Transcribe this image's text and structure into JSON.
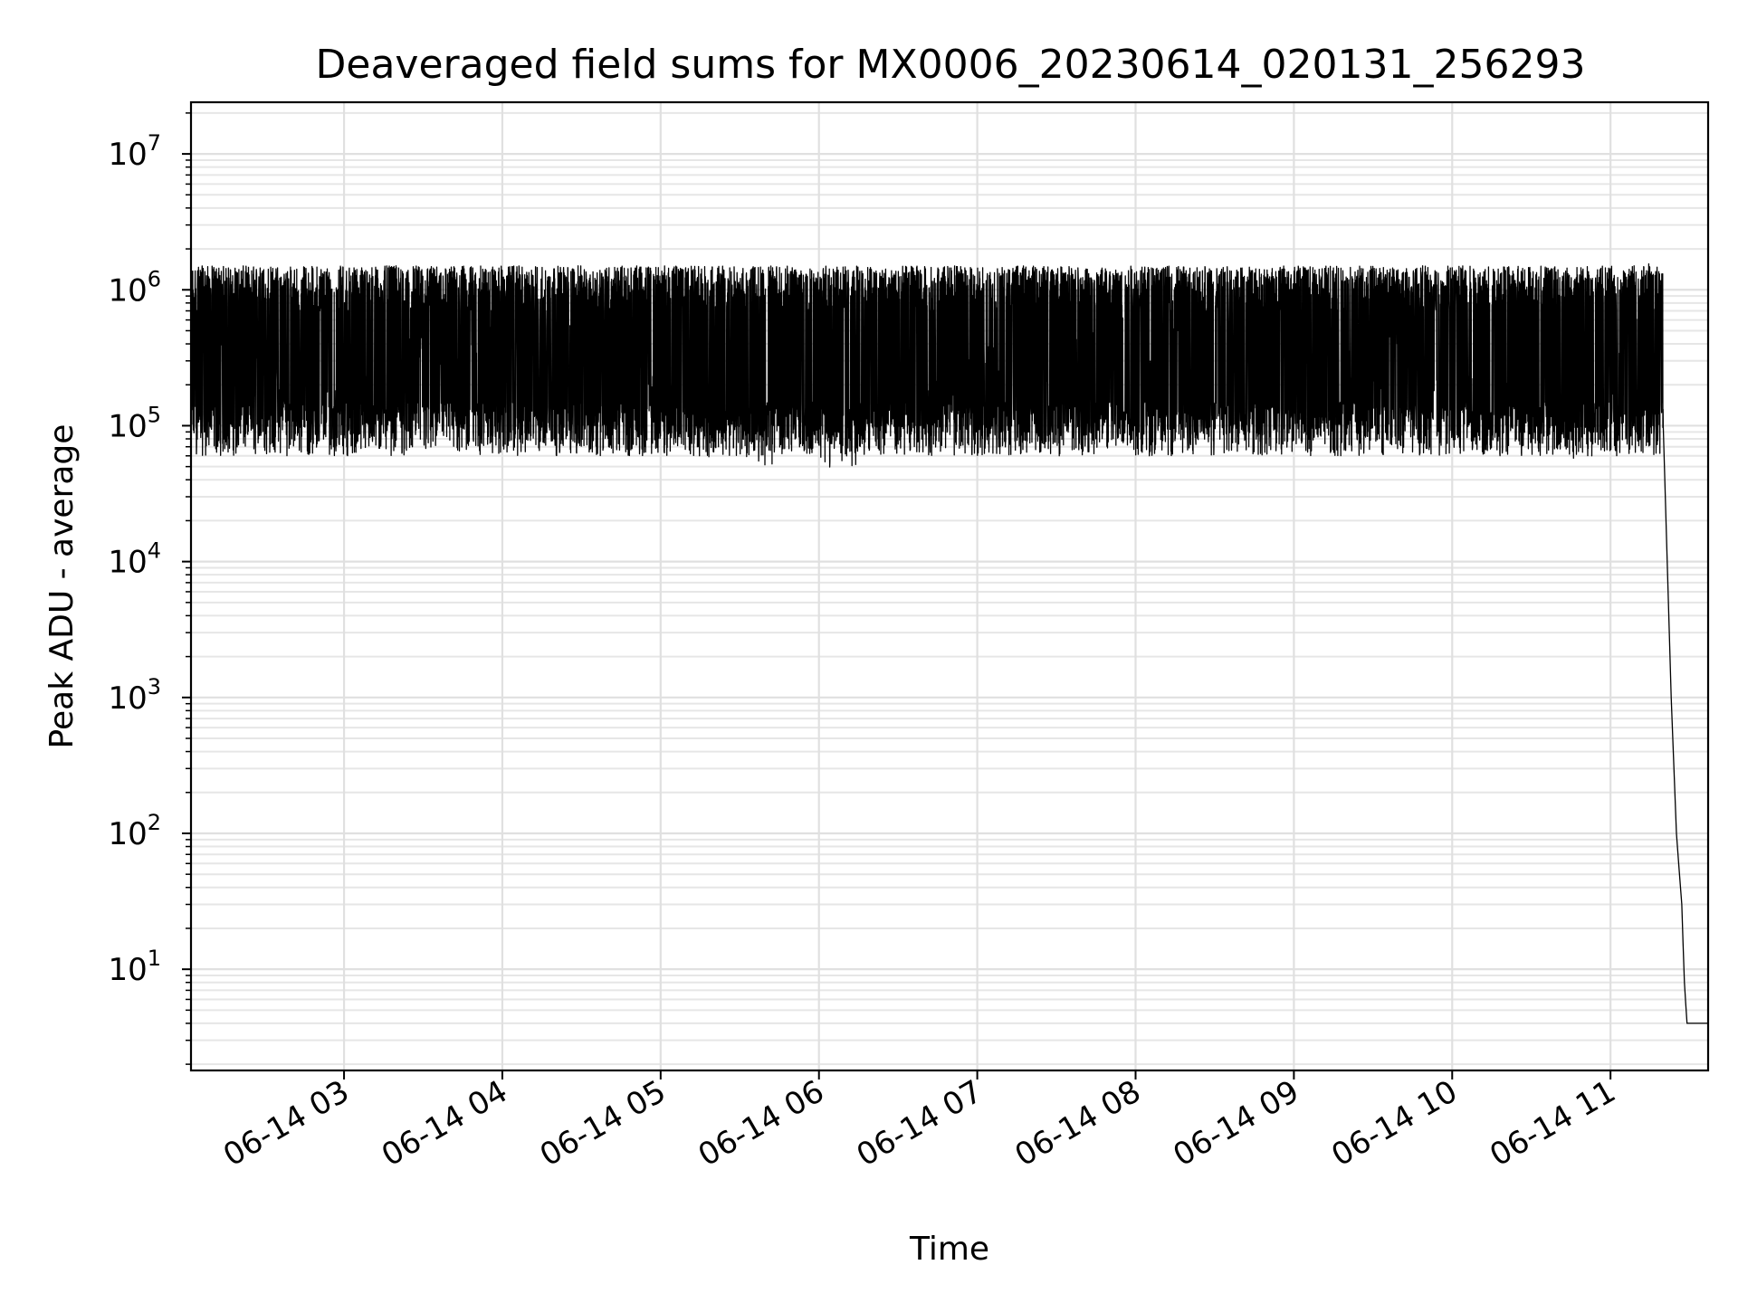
{
  "chart_data": {
    "type": "line",
    "title": "Deaveraged field sums for MX0006_20230614_020131_256293",
    "xlabel": "Time",
    "ylabel": "Peak ADU - average",
    "yscale": "log",
    "ylim": [
      1.8,
      24000000
    ],
    "xlim": [
      "06-14 02:02",
      "06-14 11:37"
    ],
    "grid": true,
    "line_color": "#000000",
    "x_ticks": [
      "06-14 03",
      "06-14 04",
      "06-14 05",
      "06-14 06",
      "06-14 07",
      "06-14 08",
      "06-14 09",
      "06-14 10",
      "06-14 11"
    ],
    "y_ticks": [
      {
        "value": 10,
        "base": "10",
        "exp": "1"
      },
      {
        "value": 100,
        "base": "10",
        "exp": "2"
      },
      {
        "value": 1000,
        "base": "10",
        "exp": "3"
      },
      {
        "value": 10000,
        "base": "10",
        "exp": "4"
      },
      {
        "value": 100000,
        "base": "10",
        "exp": "5"
      },
      {
        "value": 1000000,
        "base": "10",
        "exp": "6"
      },
      {
        "value": 10000000,
        "base": "10",
        "exp": "7"
      }
    ],
    "series": [
      {
        "x": [
          "06-14 02:02",
          "06-14 02:10",
          "06-14 02:17",
          "06-14 02:21",
          "06-14 02:28",
          "06-14 02:35",
          "06-14 02:40",
          "06-14 02:43",
          "06-14 02:50",
          "06-14 02:58",
          "06-14 03:04",
          "06-14 03:06",
          "06-14 03:10",
          "06-14 03:17",
          "06-14 03:25",
          "06-14 03:35",
          "06-14 03:45",
          "06-14 03:55",
          "06-14 04:05",
          "06-14 04:15",
          "06-14 04:22",
          "06-14 04:30",
          "06-14 04:40",
          "06-14 04:44",
          "06-14 04:50",
          "06-14 05:00",
          "06-14 05:10",
          "06-14 05:20",
          "06-14 05:30",
          "06-14 05:40",
          "06-14 05:50",
          "06-14 06:00",
          "06-14 06:10",
          "06-14 06:17",
          "06-14 06:25",
          "06-14 06:35",
          "06-14 06:45",
          "06-14 06:55",
          "06-14 07:05",
          "06-14 07:15",
          "06-14 07:25",
          "06-14 07:35",
          "06-14 07:45",
          "06-14 07:55",
          "06-14 08:05",
          "06-14 08:15",
          "06-14 08:25",
          "06-14 08:35",
          "06-14 08:45",
          "06-14 08:55",
          "06-14 09:05",
          "06-14 09:10",
          "06-14 09:20",
          "06-14 09:30",
          "06-14 09:40",
          "06-14 09:50",
          "06-14 10:00",
          "06-14 10:10",
          "06-14 10:20",
          "06-14 10:30",
          "06-14 10:40",
          "06-14 10:50",
          "06-14 10:55",
          "06-14 11:00",
          "06-14 11:05",
          "06-14 11:10",
          "06-14 11:15",
          "06-14 11:18",
          "06-14 11:20",
          "06-14 11:23",
          "06-14 11:25",
          "06-14 11:27",
          "06-14 11:28",
          "06-14 11:29",
          "06-14 11:30",
          "06-14 11:37"
        ],
        "y": [
          700000,
          600000,
          200000,
          180000,
          250000,
          160000,
          200000,
          180000,
          140000,
          130000,
          150000,
          300000,
          120000,
          300000,
          400000,
          500000,
          450000,
          500000,
          550000,
          600000,
          650000,
          700000,
          650000,
          300000,
          200000,
          180000,
          150000,
          100000,
          110000,
          100000,
          95000,
          90000,
          95000,
          100000,
          95000,
          120000,
          200000,
          250000,
          300000,
          350000,
          300000,
          400000,
          450000,
          500000,
          550000,
          500000,
          450000,
          400000,
          350000,
          300000,
          200000,
          150000,
          300000,
          350000,
          300000,
          250000,
          200000,
          180000,
          150000,
          130000,
          120000,
          100000,
          120000,
          150000,
          300000,
          900000,
          1100000,
          800000,
          100000,
          1000,
          100,
          30,
          8,
          4,
          4,
          4
        ]
      }
    ]
  }
}
